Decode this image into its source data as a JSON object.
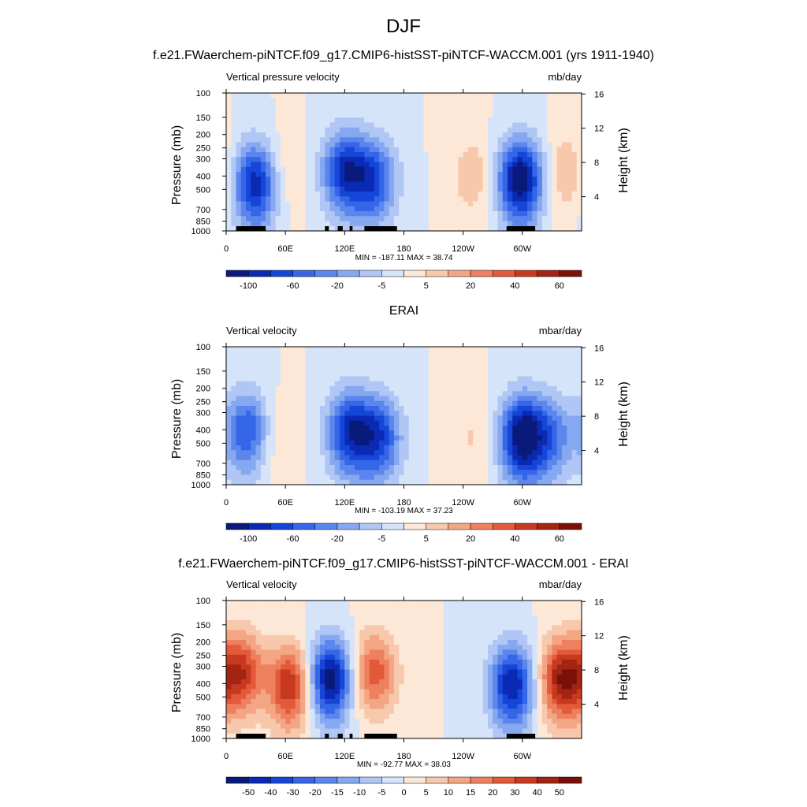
{
  "figure_title": "DJF",
  "chart_data": [
    {
      "type": "heatmap",
      "title": "f.e21.FWaerchem-piNTCF.f09_g17.CMIP6-histSST-piNTCF-WACCM.001 (yrs 1911-1940)",
      "left_string": "Vertical pressure velocity",
      "right_string": "mb/day",
      "min_max_text": "MIN = -187.11  MAX =  38.74",
      "ylabel": "Pressure (mb)",
      "ylabel_right": "Height (km)",
      "xticks": [
        "0",
        "60E",
        "120E",
        "180",
        "120W",
        "60W"
      ],
      "xtick_values": [
        0,
        60,
        120,
        180,
        240,
        300
      ],
      "xlim": [
        0,
        360
      ],
      "yticks": [
        "100",
        "150",
        "200",
        "250",
        "300",
        "400",
        "500",
        "700",
        "850",
        "1000"
      ],
      "ytick_values": [
        100,
        150,
        200,
        250,
        300,
        400,
        500,
        700,
        850,
        1000
      ],
      "ylim": [
        1000,
        100
      ],
      "y_scale": "log",
      "yticks_right": [
        "16",
        "12",
        "8",
        "4"
      ],
      "ytick_right_values": [
        16,
        12,
        8,
        4
      ],
      "colorbar_labels": [
        "-100",
        "-60",
        "-20",
        "-5",
        "5",
        "20",
        "40",
        "60"
      ],
      "colorbar_colors": [
        "#0a1a7a",
        "#0a2ab4",
        "#1646d8",
        "#3566e8",
        "#5b86ee",
        "#86a8f0",
        "#b0c6f4",
        "#d6e4fa",
        "#fde7d6",
        "#f8c8ac",
        "#f4a684",
        "#ee8060",
        "#e25a3a",
        "#c83a20",
        "#a32412",
        "#7a1008"
      ],
      "colorbar_label_positions": [
        1,
        3,
        5,
        7,
        9,
        11,
        13,
        15
      ],
      "features": [
        {
          "lon": 30,
          "p": 450,
          "value": -120
        },
        {
          "lon": 55,
          "p": 350,
          "value": 25
        },
        {
          "lon": 120,
          "p": 350,
          "value": -110
        },
        {
          "lon": 150,
          "p": 420,
          "value": -90
        },
        {
          "lon": 250,
          "p": 380,
          "value": 30
        },
        {
          "lon": 298,
          "p": 420,
          "value": -140
        },
        {
          "lon": 345,
          "p": 360,
          "value": 35
        }
      ],
      "topography_segments": [
        [
          10,
          40
        ],
        [
          100,
          104
        ],
        [
          113,
          118
        ],
        [
          125,
          128
        ],
        [
          140,
          173
        ],
        [
          284,
          313
        ]
      ]
    },
    {
      "type": "heatmap",
      "title": "ERAI",
      "left_string": "Vertical velocity",
      "right_string": "mbar/day",
      "min_max_text": "MIN = -103.19  MAX =  37.23",
      "ylabel": "Pressure (mb)",
      "ylabel_right": "Height (km)",
      "xticks": [
        "0",
        "60E",
        "120E",
        "180",
        "120W",
        "60W"
      ],
      "xtick_values": [
        0,
        60,
        120,
        180,
        240,
        300
      ],
      "xlim": [
        0,
        360
      ],
      "yticks": [
        "100",
        "150",
        "200",
        "250",
        "300",
        "400",
        "500",
        "700",
        "850",
        "1000"
      ],
      "ytick_values": [
        100,
        150,
        200,
        250,
        300,
        400,
        500,
        700,
        850,
        1000
      ],
      "ylim": [
        1000,
        100
      ],
      "y_scale": "log",
      "yticks_right": [
        "16",
        "12",
        "8",
        "4"
      ],
      "ytick_right_values": [
        16,
        12,
        8,
        4
      ],
      "colorbar_labels": [
        "-100",
        "-60",
        "-20",
        "-5",
        "5",
        "20",
        "40",
        "60"
      ],
      "colorbar_colors": [
        "#0a1a7a",
        "#0a2ab4",
        "#1646d8",
        "#3566e8",
        "#5b86ee",
        "#86a8f0",
        "#b0c6f4",
        "#d6e4fa",
        "#fde7d6",
        "#f8c8ac",
        "#f4a684",
        "#ee8060",
        "#e25a3a",
        "#c83a20",
        "#a32412",
        "#7a1008"
      ],
      "colorbar_label_positions": [
        1,
        3,
        5,
        7,
        9,
        11,
        13,
        15
      ],
      "features": [
        {
          "lon": 22,
          "p": 400,
          "value": -60
        },
        {
          "lon": 45,
          "p": 450,
          "value": 15
        },
        {
          "lon": 125,
          "p": 400,
          "value": -70
        },
        {
          "lon": 155,
          "p": 450,
          "value": -60
        },
        {
          "lon": 250,
          "p": 450,
          "value": 12
        },
        {
          "lon": 300,
          "p": 450,
          "value": -90
        },
        {
          "lon": 330,
          "p": 450,
          "value": -40
        }
      ],
      "topography_segments": []
    },
    {
      "type": "heatmap",
      "title": "f.e21.FWaerchem-piNTCF.f09_g17.CMIP6-histSST-piNTCF-WACCM.001 - ERAI",
      "left_string": "Vertical velocity",
      "right_string": "mbar/day",
      "min_max_text": "MIN = -92.77  MAX =  38.03",
      "ylabel": "Pressure (mb)",
      "ylabel_right": "Height (km)",
      "xticks": [
        "0",
        "60E",
        "120E",
        "180",
        "120W",
        "60W"
      ],
      "xtick_values": [
        0,
        60,
        120,
        180,
        240,
        300
      ],
      "xlim": [
        0,
        360
      ],
      "yticks": [
        "100",
        "150",
        "200",
        "250",
        "300",
        "400",
        "500",
        "700",
        "850",
        "1000"
      ],
      "ytick_values": [
        100,
        150,
        200,
        250,
        300,
        400,
        500,
        700,
        850,
        1000
      ],
      "ylim": [
        1000,
        100
      ],
      "y_scale": "log",
      "yticks_right": [
        "16",
        "12",
        "8",
        "4"
      ],
      "ytick_right_values": [
        16,
        12,
        8,
        4
      ],
      "colorbar_labels": [
        "-50",
        "-40",
        "-30",
        "-20",
        "-15",
        "-10",
        "-5",
        "0",
        "5",
        "10",
        "15",
        "20",
        "30",
        "40",
        "50"
      ],
      "colorbar_colors": [
        "#0a1a7a",
        "#0a2ab4",
        "#1646d8",
        "#3566e8",
        "#5b86ee",
        "#86a8f0",
        "#b0c6f4",
        "#d6e4fa",
        "#fde7d6",
        "#f8c8ac",
        "#f4a684",
        "#ee8060",
        "#e25a3a",
        "#c83a20",
        "#a32412",
        "#7a1008"
      ],
      "colorbar_label_positions": [
        1,
        2,
        3,
        4,
        5,
        6,
        7,
        8,
        9,
        10,
        11,
        12,
        13,
        14,
        15
      ],
      "features": [
        {
          "lon": 15,
          "p": 300,
          "value": 30
        },
        {
          "lon": 65,
          "p": 400,
          "value": 30
        },
        {
          "lon": 105,
          "p": 350,
          "value": -40
        },
        {
          "lon": 150,
          "p": 300,
          "value": 25
        },
        {
          "lon": 290,
          "p": 400,
          "value": -35
        },
        {
          "lon": 340,
          "p": 350,
          "value": 35
        }
      ],
      "topography_segments": [
        [
          10,
          40
        ],
        [
          100,
          104
        ],
        [
          113,
          118
        ],
        [
          125,
          128
        ],
        [
          140,
          173
        ],
        [
          284,
          313
        ]
      ]
    }
  ]
}
